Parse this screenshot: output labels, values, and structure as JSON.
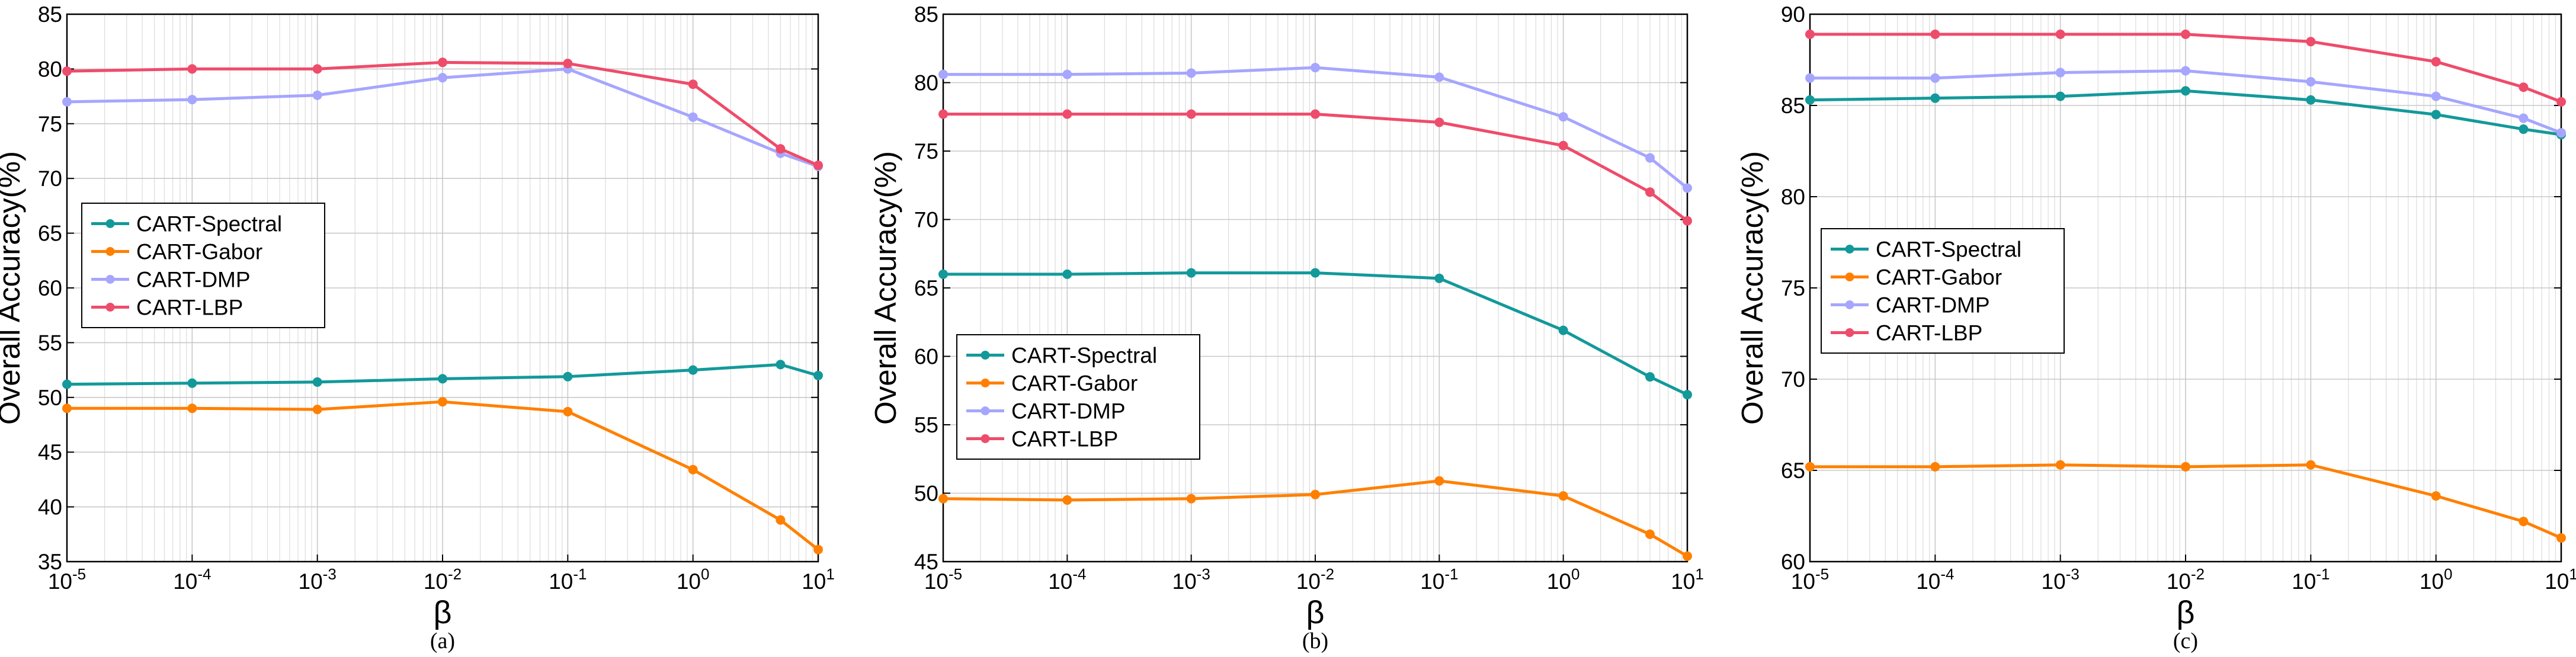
{
  "chart_data": [
    {
      "type": "line",
      "caption": "(a)",
      "xlabel": "β",
      "ylabel": "Overall Accuracy(%)",
      "xscale": "log",
      "xlim": [
        1e-05,
        10
      ],
      "ylim": [
        35,
        85
      ],
      "yticks": [
        35,
        40,
        45,
        50,
        55,
        60,
        65,
        70,
        75,
        80,
        85
      ],
      "x": [
        1e-05,
        0.0001,
        0.001,
        0.01,
        0.1,
        1,
        5,
        10
      ],
      "xtick_labels": [
        {
          "base": "10",
          "exp": "-5"
        },
        {
          "base": "10",
          "exp": "-4"
        },
        {
          "base": "10",
          "exp": "-3"
        },
        {
          "base": "10",
          "exp": "-2"
        },
        {
          "base": "10",
          "exp": "-1"
        },
        {
          "base": "10",
          "exp": "0"
        },
        {
          "base": "10",
          "exp": "1"
        }
      ],
      "grid": true,
      "legend_position": "middle-left",
      "series": [
        {
          "name": "CART-Spectral",
          "color": "#13999a",
          "values": [
            51.2,
            51.3,
            51.4,
            51.7,
            51.9,
            52.5,
            53.0,
            52.0
          ]
        },
        {
          "name": "CART-Gabor",
          "color": "#ff8000",
          "values": [
            49.0,
            49.0,
            48.9,
            49.6,
            48.7,
            43.4,
            38.8,
            36.1
          ]
        },
        {
          "name": "CART-DMP",
          "color": "#a6a6ff",
          "values": [
            77.0,
            77.2,
            77.6,
            79.2,
            80.0,
            75.6,
            72.3,
            71.1
          ]
        },
        {
          "name": "CART-LBP",
          "color": "#ee4c6b",
          "values": [
            79.8,
            80.0,
            80.0,
            80.6,
            80.5,
            78.6,
            72.7,
            71.2
          ]
        }
      ]
    },
    {
      "type": "line",
      "caption": "(b)",
      "xlabel": "β",
      "ylabel": "Overall Accuracy(%)",
      "xscale": "log",
      "xlim": [
        1e-05,
        10
      ],
      "ylim": [
        45,
        85
      ],
      "yticks": [
        45,
        50,
        55,
        60,
        65,
        70,
        75,
        80,
        85
      ],
      "x": [
        1e-05,
        0.0001,
        0.001,
        0.01,
        0.1,
        1,
        5,
        10
      ],
      "xtick_labels": [
        {
          "base": "10",
          "exp": "-5"
        },
        {
          "base": "10",
          "exp": "-4"
        },
        {
          "base": "10",
          "exp": "-3"
        },
        {
          "base": "10",
          "exp": "-2"
        },
        {
          "base": "10",
          "exp": "-1"
        },
        {
          "base": "10",
          "exp": "0"
        },
        {
          "base": "10",
          "exp": "1"
        }
      ],
      "grid": true,
      "legend_position": "lower-left",
      "series": [
        {
          "name": "CART-Spectral",
          "color": "#13999a",
          "values": [
            66.0,
            66.0,
            66.1,
            66.1,
            65.7,
            61.9,
            58.5,
            57.2
          ]
        },
        {
          "name": "CART-Gabor",
          "color": "#ff8000",
          "values": [
            49.6,
            49.5,
            49.6,
            49.9,
            50.9,
            49.8,
            47.0,
            45.4
          ]
        },
        {
          "name": "CART-DMP",
          "color": "#a6a6ff",
          "values": [
            80.6,
            80.6,
            80.7,
            81.1,
            80.4,
            77.5,
            74.5,
            72.3
          ]
        },
        {
          "name": "CART-LBP",
          "color": "#ee4c6b",
          "values": [
            77.7,
            77.7,
            77.7,
            77.7,
            77.1,
            75.4,
            72.0,
            69.9
          ]
        }
      ]
    },
    {
      "type": "line",
      "caption": "(c)",
      "xlabel": "β",
      "ylabel": "Overall Accuracy(%)",
      "xscale": "log",
      "xlim": [
        1e-05,
        10
      ],
      "ylim": [
        60,
        90
      ],
      "yticks": [
        60,
        65,
        70,
        75,
        80,
        85,
        90
      ],
      "x": [
        1e-05,
        0.0001,
        0.001,
        0.01,
        0.1,
        1,
        5,
        10
      ],
      "xtick_labels": [
        {
          "base": "10",
          "exp": "-5"
        },
        {
          "base": "10",
          "exp": "-4"
        },
        {
          "base": "10",
          "exp": "-3"
        },
        {
          "base": "10",
          "exp": "-2"
        },
        {
          "base": "10",
          "exp": "-1"
        },
        {
          "base": "10",
          "exp": "0"
        },
        {
          "base": "10",
          "exp": "1"
        }
      ],
      "grid": true,
      "legend_position": "middle-left",
      "series": [
        {
          "name": "CART-Spectral",
          "color": "#13999a",
          "values": [
            85.3,
            85.4,
            85.5,
            85.8,
            85.3,
            84.5,
            83.7,
            83.4
          ]
        },
        {
          "name": "CART-Gabor",
          "color": "#ff8000",
          "values": [
            65.2,
            65.2,
            65.3,
            65.2,
            65.3,
            63.6,
            62.2,
            61.3
          ]
        },
        {
          "name": "CART-DMP",
          "color": "#a6a6ff",
          "values": [
            86.5,
            86.5,
            86.8,
            86.9,
            86.3,
            85.5,
            84.3,
            83.5
          ]
        },
        {
          "name": "CART-LBP",
          "color": "#ee4c6b",
          "values": [
            88.9,
            88.9,
            88.9,
            88.9,
            88.5,
            87.4,
            86.0,
            85.2
          ]
        }
      ]
    }
  ]
}
